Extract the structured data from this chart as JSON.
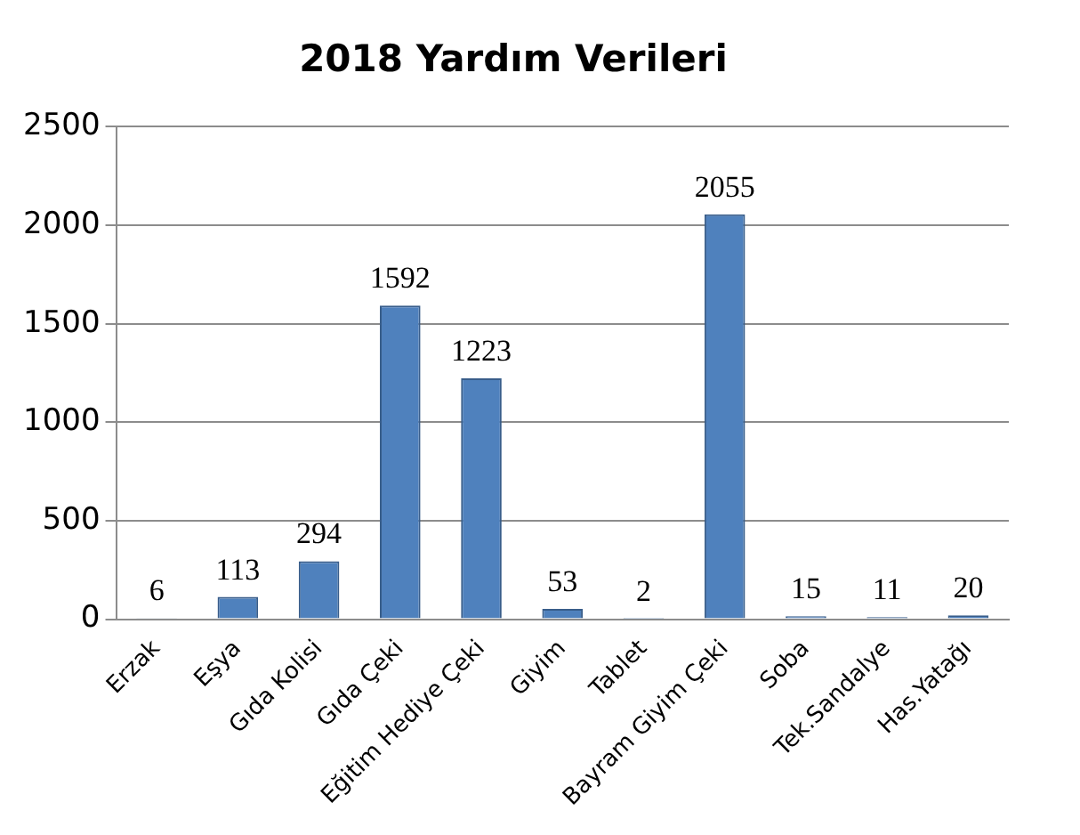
{
  "chart_data": {
    "type": "bar",
    "title": "2018 Yardım Verileri",
    "categories": [
      "Erzak",
      "Eşya",
      "Gıda Kolisi",
      "Gıda Çeki",
      "Eğitim Hediye Çeki",
      "Giyim",
      "Tablet",
      "Bayram Giyim Çeki",
      "Soba",
      "Tek.Sandalye",
      "Has.Yatağı"
    ],
    "values": [
      6,
      113,
      294,
      1592,
      1223,
      53,
      2,
      2055,
      15,
      11,
      20
    ],
    "color": "#4f81bd",
    "ylim": [
      0,
      2500
    ],
    "yticks": [
      0,
      500,
      1000,
      1500,
      2000,
      2500
    ],
    "grid": "y",
    "legend": false,
    "data_labels": true
  }
}
